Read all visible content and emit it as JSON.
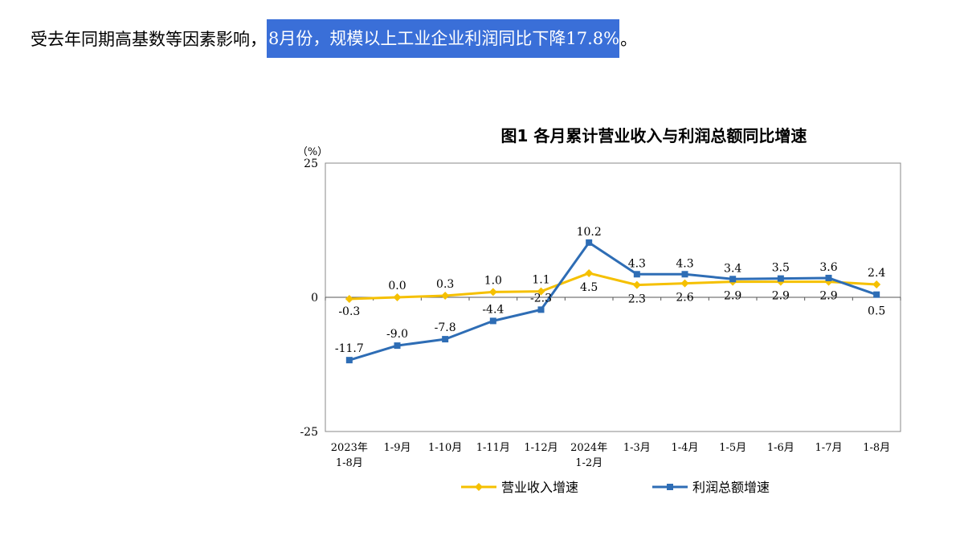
{
  "headline": {
    "prefix": "受去年同期高基数等因素影响，",
    "highlight": "8月份，规模以上工业企业利润同比下降17.8%",
    "suffix": "。"
  },
  "colors": {
    "revenue": "#f5c000",
    "profit": "#2e6db5",
    "highlight": "#3a6fd8"
  },
  "chart_data": {
    "type": "line",
    "title": "图1  各月累计营业收入与利润总额同比增速",
    "unit": "（%）",
    "ylim": [
      -25,
      25
    ],
    "yticks": [
      25,
      0,
      -25
    ],
    "ytick_labels": [
      "25",
      "0",
      "-25"
    ],
    "grid": false,
    "legend_position": "bottom",
    "categories": [
      [
        "2023年",
        "1-8月"
      ],
      [
        "1-9月"
      ],
      [
        "1-10月"
      ],
      [
        "1-11月"
      ],
      [
        "1-12月"
      ],
      [
        "2024年",
        "1-2月"
      ],
      [
        "1-3月"
      ],
      [
        "1-4月"
      ],
      [
        "1-5月"
      ],
      [
        "1-6月"
      ],
      [
        "1-7月"
      ],
      [
        "1-8月"
      ]
    ],
    "series": [
      {
        "name": "营业收入增速",
        "key": "revenue",
        "marker": "diamond",
        "values": [
          -0.3,
          0.0,
          0.3,
          1.0,
          1.1,
          4.5,
          2.3,
          2.6,
          2.9,
          2.9,
          2.9,
          2.4
        ],
        "labels": [
          "-0.3",
          "0.0",
          "0.3",
          "1.0",
          "1.1",
          "4.5",
          "2.3",
          "2.6",
          "2.9",
          "2.9",
          "2.9",
          "2.4"
        ]
      },
      {
        "name": "利润总额增速",
        "key": "profit",
        "marker": "square",
        "values": [
          -11.7,
          -9.0,
          -7.8,
          -4.4,
          -2.3,
          10.2,
          4.3,
          4.3,
          3.4,
          3.5,
          3.6,
          0.5
        ],
        "labels": [
          "-11.7",
          "-9.0",
          "-7.8",
          "-4.4",
          "-2.3",
          "10.2",
          "4.3",
          "4.3",
          "3.4",
          "3.5",
          "3.6",
          "0.5"
        ]
      }
    ]
  }
}
